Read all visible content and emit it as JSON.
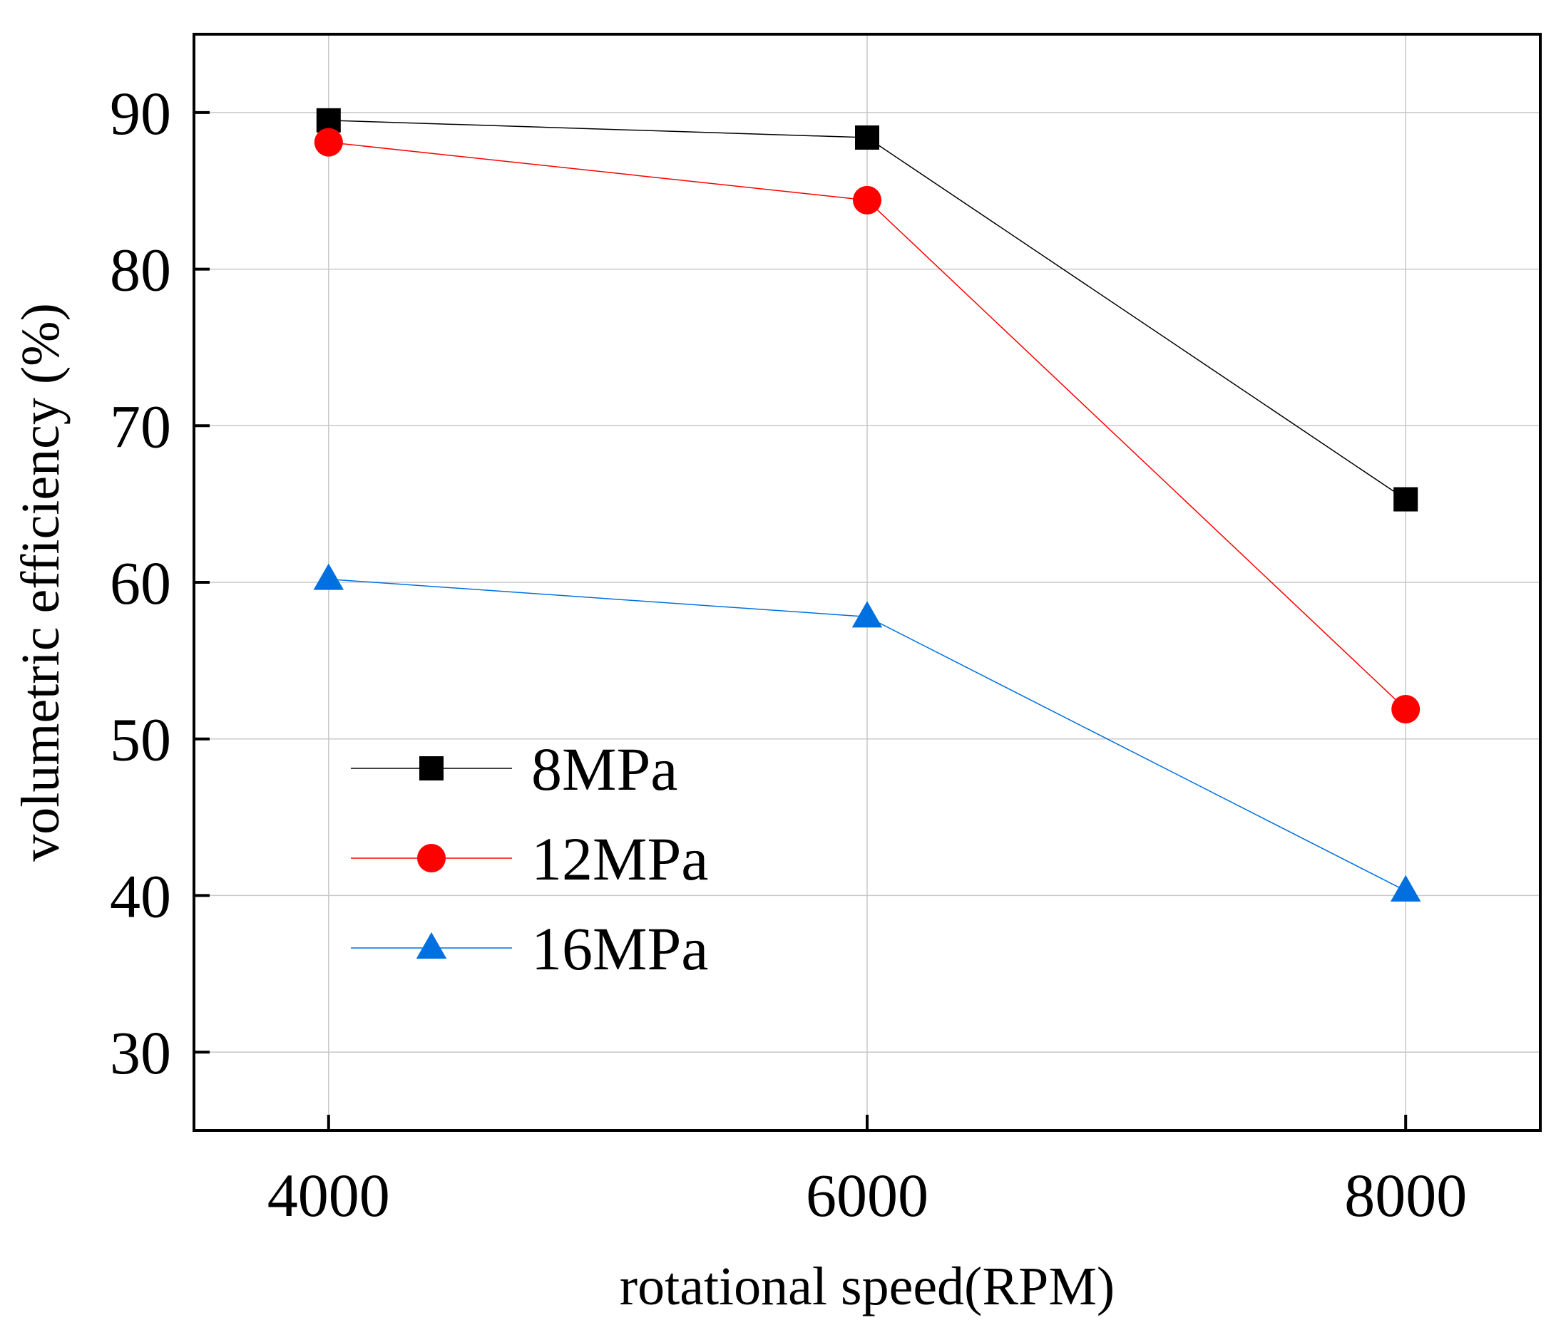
{
  "chart_data": {
    "type": "line",
    "title": "",
    "xlabel": "rotational speed(RPM)",
    "ylabel": "volumetric efficiency (%)",
    "x": [
      4000,
      6000,
      8000
    ],
    "xticks": [
      "4000",
      "6000",
      "8000"
    ],
    "yticks": [
      "30",
      "40",
      "50",
      "60",
      "70",
      "80",
      "90"
    ],
    "xlim": [
      3500,
      8500
    ],
    "ylim": [
      25,
      95
    ],
    "grid": true,
    "legend_position": "center-left",
    "series": [
      {
        "name": "8MPa",
        "values": [
          89.5,
          88.4,
          65.3
        ],
        "color": "#000000",
        "marker": "square"
      },
      {
        "name": "12MPa",
        "values": [
          88.1,
          84.4,
          51.9
        ],
        "color": "#ff0000",
        "marker": "circle"
      },
      {
        "name": "16MPa",
        "values": [
          60.2,
          57.8,
          40.3
        ],
        "color": "#0070e0",
        "marker": "triangle"
      }
    ]
  }
}
